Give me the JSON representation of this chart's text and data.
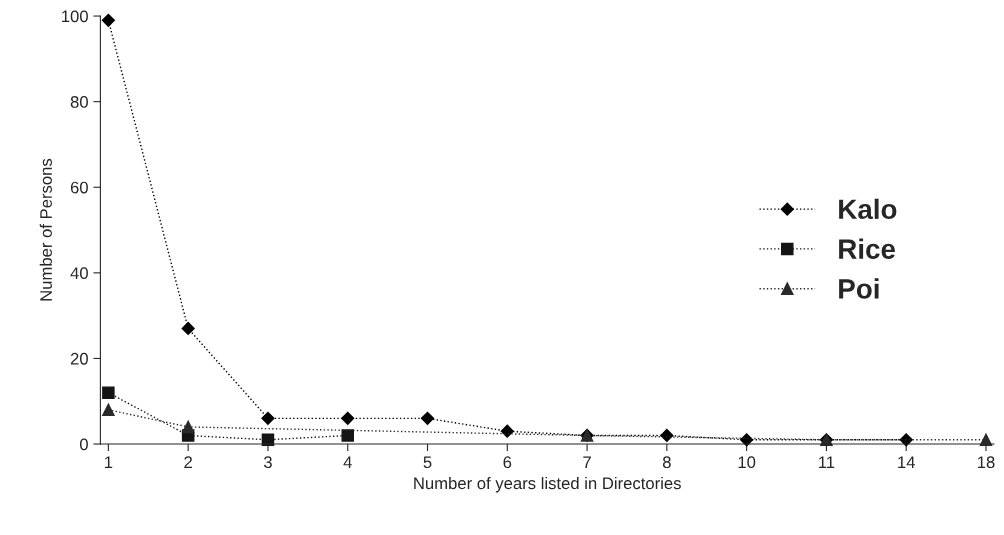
{
  "chart_data": {
    "type": "line",
    "xlabel": "Number of years listed in Directories",
    "ylabel": "Number of Persons",
    "categories": [
      "1",
      "2",
      "3",
      "4",
      "5",
      "6",
      "7",
      "8",
      "10",
      "11",
      "14",
      "18"
    ],
    "series": [
      {
        "name": "Kalo",
        "color": "#000000",
        "marker": "diamond",
        "values": [
          99,
          27,
          6,
          6,
          6,
          3,
          2,
          2,
          1,
          1,
          1,
          null
        ]
      },
      {
        "name": "Rice",
        "color": "#141414",
        "marker": "square",
        "values": [
          12,
          2,
          1,
          2,
          null,
          null,
          null,
          null,
          null,
          null,
          null,
          null
        ]
      },
      {
        "name": "Poi",
        "color": "#2a2a2a",
        "marker": "triangle",
        "values": [
          8,
          4,
          null,
          null,
          null,
          null,
          2,
          null,
          null,
          1,
          null,
          1
        ]
      }
    ],
    "ylim": [
      0,
      100
    ],
    "yticks": [
      0,
      20,
      40,
      60,
      80,
      100
    ],
    "grid": false,
    "legend": "right",
    "line_style": "dotted"
  }
}
